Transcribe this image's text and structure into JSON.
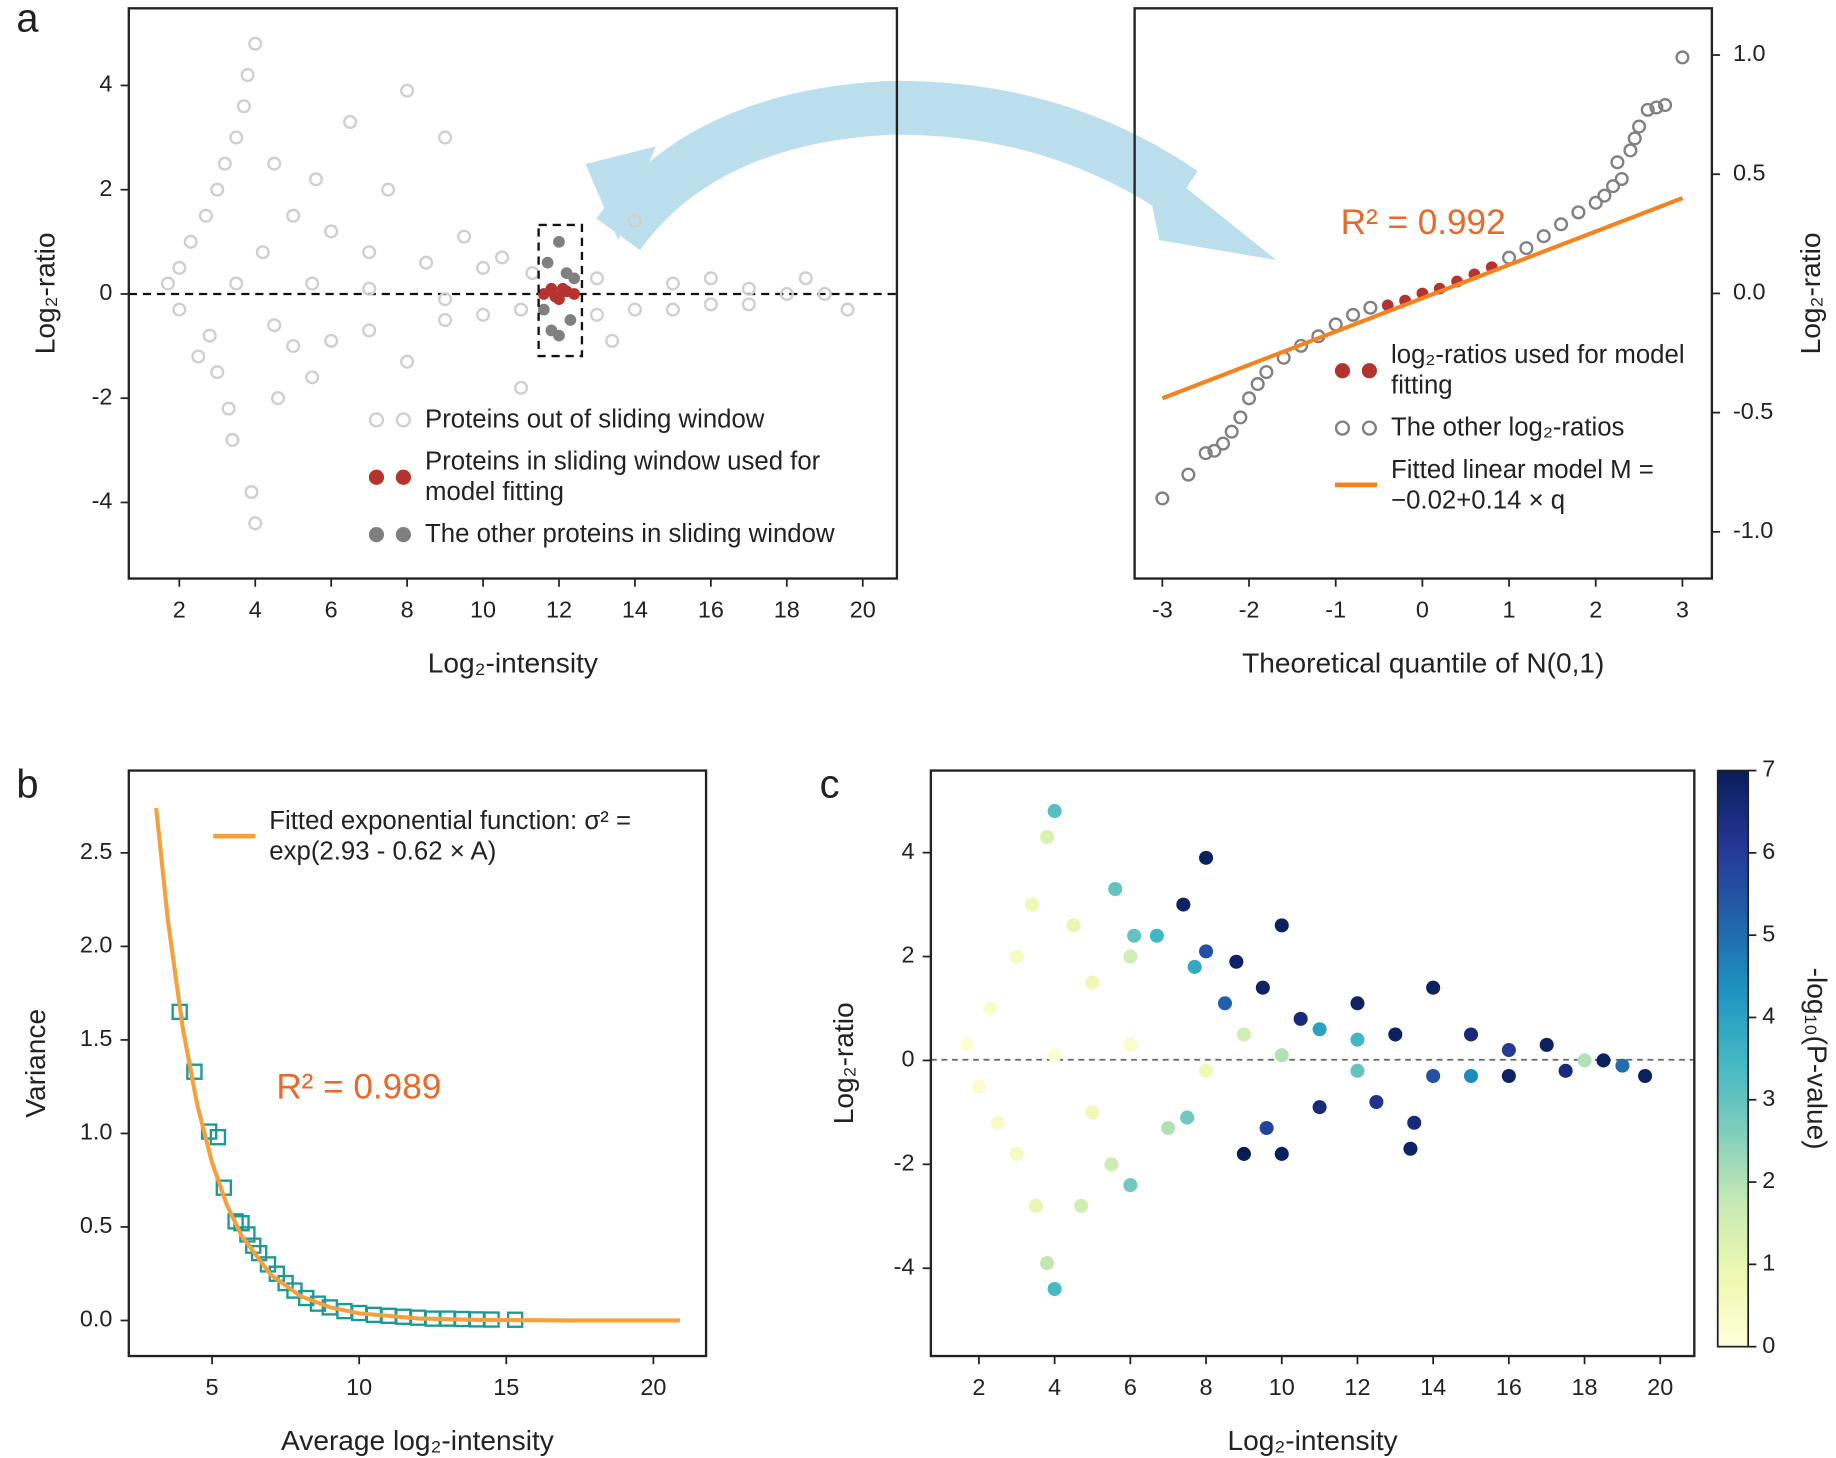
{
  "chart_data": [
    {
      "type": "scatter",
      "panel_label": "a",
      "x_label": "Log₂-intensity",
      "y_label": "Log₂-ratio",
      "y_axis_side": "left",
      "xlim": [
        0.67,
        20.9
      ],
      "ylim": [
        -5.46,
        5.48
      ],
      "xticks": [
        2,
        4,
        6,
        8,
        10,
        12,
        14,
        16,
        18,
        20
      ],
      "yticks": [
        -4,
        -2,
        0,
        2,
        4
      ],
      "legend": "lower right",
      "series": [
        {
          "name": "Proteins out of sliding window",
          "color": "#cfcfcf",
          "mode": "markers",
          "marker": "open-circle",
          "x": [
            1.7,
            2,
            2,
            2.3,
            2.5,
            2.7,
            2.8,
            3,
            3,
            3.2,
            3.3,
            3.5,
            3.4,
            3.7,
            3.8,
            4,
            3.9,
            4,
            4.5,
            4.6,
            4.2,
            4.5,
            5,
            5,
            5.6,
            5.5,
            6,
            6,
            6.5,
            7,
            7,
            7.5,
            8,
            8,
            8.5,
            9,
            9,
            9.5,
            10,
            10,
            10.5,
            11,
            11,
            11.3,
            13,
            13,
            13.4,
            14,
            14,
            15,
            15,
            16,
            16,
            17,
            17,
            18,
            18.5,
            19,
            19.6,
            5.5,
            7,
            9,
            3.5
          ],
          "values": [
            0.2,
            0.5,
            -0.3,
            1.0,
            -1.2,
            1.5,
            -0.8,
            2.0,
            -1.5,
            2.5,
            -2.2,
            3.0,
            -2.8,
            3.6,
            4.2,
            4.8,
            -3.8,
            -4.4,
            2.5,
            -2.0,
            0.8,
            -0.6,
            1.5,
            -1.0,
            2.2,
            -1.6,
            1.2,
            -0.9,
            3.3,
            0.8,
            -0.7,
            2.0,
            3.9,
            -1.3,
            0.6,
            3.0,
            -0.5,
            1.1,
            0.5,
            -0.4,
            0.7,
            -0.3,
            -1.8,
            0.4,
            0.3,
            -0.4,
            -0.9,
            1.4,
            -0.3,
            0.2,
            -0.3,
            0.3,
            -0.2,
            0.1,
            -0.2,
            0,
            0.3,
            0,
            -0.3,
            0.2,
            0.1,
            -0.1,
            0.2
          ]
        },
        {
          "name": "Proteins in sliding window used for model fitting",
          "color": "#b5332e",
          "mode": "markers",
          "marker": "circle",
          "x": [
            11.6,
            11.8,
            12,
            12.2,
            12.4,
            11.9,
            12.1
          ],
          "values": [
            0,
            0.1,
            -0.1,
            0.05,
            0,
            -0.05,
            0.1
          ]
        },
        {
          "name": "The other proteins in sliding window",
          "color": "#808080",
          "mode": "markers",
          "marker": "circle",
          "x": [
            11.7,
            12,
            12.3,
            11.8,
            12.2,
            12,
            11.6,
            12.4
          ],
          "values": [
            0.6,
            1.0,
            -0.5,
            -0.7,
            0.4,
            -0.8,
            -0.3,
            0.3
          ]
        }
      ]
    },
    {
      "type": "scatter",
      "x_label": "Theoretical quantile of N(0,1)",
      "y_label": "Log₂-ratio",
      "y_axis_side": "right",
      "xlim": [
        -3.32,
        3.34
      ],
      "ylim": [
        -1.196,
        1.196
      ],
      "xticks": [
        -3,
        -2,
        -1,
        0,
        1,
        2,
        3
      ],
      "yticks": [
        {
          "value": -1,
          "label": "-1.0"
        },
        -0.5,
        {
          "value": 0,
          "label": "0.0"
        },
        0.5,
        {
          "value": 1,
          "label": "1.0"
        }
      ],
      "legend": "lower right",
      "annotation": {
        "text": "R² = 0.992",
        "color": "#e8692a"
      },
      "series": [
        {
          "name": "log₂-ratios used for model fitting",
          "color": "#b5332e",
          "mode": "markers",
          "marker": "circle",
          "x": [
            -0.4,
            -0.2,
            0,
            0.2,
            0.4,
            0.6,
            0.8
          ],
          "values": [
            -0.05,
            -0.03,
            0,
            0.02,
            0.05,
            0.08,
            0.11
          ]
        },
        {
          "name": "The other log₂-ratios",
          "color": "#808080",
          "mode": "markers",
          "marker": "open-circle",
          "x": [
            -3,
            -2.7,
            -2.5,
            -2.4,
            -2.3,
            -2.2,
            -2.1,
            -2,
            -1.9,
            -1.8,
            -1.6,
            -1.4,
            -1.2,
            -1,
            -0.8,
            -0.6,
            1,
            1.2,
            1.4,
            1.6,
            1.8,
            2,
            2.1,
            2.2,
            2.3,
            2.25,
            2.4,
            2.45,
            2.5,
            2.6,
            2.7,
            2.8,
            3
          ],
          "values": [
            -0.86,
            -0.76,
            -0.67,
            -0.66,
            -0.63,
            -0.58,
            -0.52,
            -0.44,
            -0.38,
            -0.33,
            -0.27,
            -0.22,
            -0.18,
            -0.13,
            -0.09,
            -0.06,
            0.15,
            0.19,
            0.24,
            0.29,
            0.34,
            0.38,
            0.41,
            0.45,
            0.48,
            0.55,
            0.6,
            0.65,
            0.7,
            0.77,
            0.78,
            0.79,
            0.99
          ]
        },
        {
          "name": "Fitted linear model M = −0.02+0.14 × q",
          "color": "#f5821f",
          "mode": "line",
          "x": [
            -3,
            3
          ],
          "values": [
            -0.44,
            0.4
          ]
        }
      ]
    },
    {
      "type": "scatter",
      "panel_label": "b",
      "x_label": "Average log₂-intensity",
      "y_label": "Variance",
      "y_axis_side": "left",
      "xlim": [
        2.17,
        21.79
      ],
      "ylim": [
        -0.19,
        2.94
      ],
      "xticks": [
        5,
        10,
        15,
        20
      ],
      "yticks": [
        {
          "value": 0,
          "label": "0.0"
        },
        0.5,
        {
          "value": 1,
          "label": "1.0"
        },
        1.5,
        {
          "value": 2,
          "label": "2.0"
        },
        2.5
      ],
      "legend": "upper right",
      "annotation": {
        "text": "R² = 0.989",
        "color": "#e8692a"
      },
      "series": [
        {
          "color": "#1a9a94",
          "mode": "markers",
          "marker": "square",
          "x": [
            3.9,
            4.4,
            4.9,
            5.2,
            5.4,
            5.8,
            6,
            6.2,
            6.4,
            6.6,
            6.9,
            7.2,
            7.5,
            7.8,
            8.2,
            8.6,
            9,
            9.5,
            10,
            10.5,
            11,
            11.5,
            12,
            12.5,
            13,
            13.5,
            14,
            14.5,
            15.3
          ],
          "values": [
            1.65,
            1.33,
            1.01,
            0.98,
            0.71,
            0.53,
            0.52,
            0.46,
            0.4,
            0.36,
            0.3,
            0.25,
            0.2,
            0.16,
            0.12,
            0.09,
            0.07,
            0.05,
            0.04,
            0.03,
            0.025,
            0.02,
            0.015,
            0.01,
            0.01,
            0.008,
            0.006,
            0.005,
            0.004
          ]
        },
        {
          "name": "Fitted exponential function: σ² = exp(2.93 - 0.62 × A)",
          "color": "#f5a03c",
          "mode": "line",
          "x": [
            3.1,
            3.5,
            4,
            4.5,
            5,
            5.5,
            6,
            7,
            8,
            9,
            10,
            12,
            14,
            17,
            20.9
          ],
          "values": [
            2.74,
            2.138,
            1.568,
            1.15,
            0.844,
            0.619,
            0.454,
            0.244,
            0.131,
            0.071,
            0.038,
            0.011,
            0.003,
            0.0005,
            4e-05
          ]
        }
      ]
    },
    {
      "type": "scatter",
      "panel_label": "c",
      "x_label": "Log₂-intensity",
      "y_label": "Log₂-ratio",
      "y_axis_side": "left",
      "xlim": [
        0.73,
        20.9
      ],
      "ylim": [
        -5.69,
        5.58
      ],
      "xticks": [
        2,
        4,
        6,
        8,
        10,
        12,
        14,
        16,
        18,
        20
      ],
      "yticks": [
        -4,
        -2,
        0,
        2,
        4
      ],
      "colormap": "YlGnBu",
      "colorbar": {
        "label": "-log₁₀(P-value)",
        "clim": [
          0,
          7
        ],
        "ticks": [
          0,
          1,
          2,
          3,
          4,
          5,
          6,
          7
        ]
      },
      "series": [
        {
          "mode": "markers",
          "marker": "circle",
          "x": [
            1.7,
            2,
            2.3,
            2.5,
            3,
            3,
            3.4,
            3.5,
            3.8,
            4,
            3.8,
            4,
            4.5,
            4.7,
            5,
            5,
            5.6,
            5.5,
            6,
            6,
            6.1,
            6.7,
            7,
            7.5,
            7.4,
            7.7,
            8,
            8,
            8.8,
            8.5,
            9,
            9.5,
            9.6,
            10,
            10,
            10.5,
            11,
            11,
            12,
            12.5,
            13,
            13.4,
            13.5,
            14,
            14,
            15,
            15,
            16,
            16,
            17,
            17.5,
            18,
            18.5,
            19,
            19.6,
            6,
            8,
            10,
            12,
            4,
            9,
            12
          ],
          "values": [
            0.3,
            -0.5,
            1.0,
            -1.2,
            2.0,
            -1.8,
            3.0,
            -2.8,
            4.3,
            4.8,
            -3.9,
            -4.4,
            2.6,
            -2.8,
            1.5,
            -1.0,
            3.3,
            -2.0,
            2.0,
            -2.4,
            2.4,
            2.4,
            -1.3,
            -1.1,
            3.0,
            1.8,
            3.9,
            2.1,
            1.9,
            1.1,
            -1.8,
            1.4,
            -1.3,
            2.6,
            -1.8,
            0.8,
            -0.9,
            0.6,
            1.1,
            -0.8,
            0.5,
            -1.7,
            -1.2,
            1.4,
            -0.3,
            0.5,
            -0.3,
            0.2,
            -0.3,
            0.3,
            -0.2,
            0.0,
            0.0,
            -0.1,
            -0.3,
            0.3,
            -0.2,
            0.1,
            -0.2,
            0.1,
            0.5,
            0.4
          ],
          "color_values": [
            0.1,
            0.2,
            0.3,
            0.4,
            0.5,
            0.5,
            0.8,
            1.0,
            1.3,
            3.2,
            1.8,
            3.4,
            1.0,
            1.5,
            0.8,
            0.7,
            3.0,
            1.6,
            1.5,
            2.8,
            3.0,
            3.5,
            2.0,
            2.8,
            6.8,
            3.8,
            6.9,
            5.5,
            6.8,
            5.2,
            7,
            6.8,
            5.8,
            6.9,
            6.9,
            6.5,
            6.5,
            4.0,
            6.8,
            6.2,
            6.9,
            6.8,
            6.5,
            6.9,
            5.5,
            6.5,
            4.5,
            6.0,
            6.8,
            6.9,
            6.5,
            2.0,
            6.9,
            5.0,
            6.9,
            0.3,
            0.8,
            2.0,
            3.0,
            0.1,
            1.5,
            3.5
          ]
        }
      ]
    }
  ]
}
